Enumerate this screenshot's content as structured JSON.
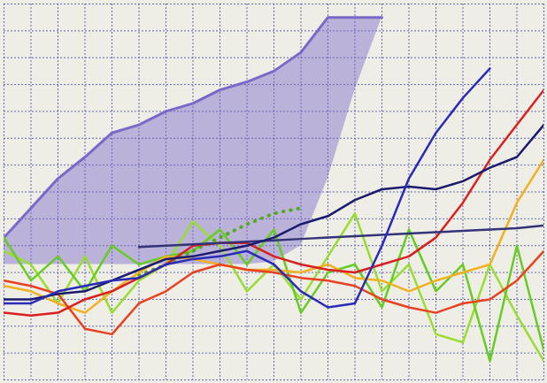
{
  "chart_data": {
    "type": "line",
    "x": [
      0,
      1,
      2,
      3,
      4,
      5,
      6,
      7,
      8,
      9,
      10,
      11,
      12,
      13,
      14,
      15,
      16,
      17,
      18,
      19,
      20
    ],
    "xlim": [
      0,
      20
    ],
    "ylim": [
      0,
      14
    ],
    "xticks": [
      0,
      1,
      2,
      3,
      4,
      5,
      6,
      7,
      8,
      9,
      10,
      11,
      12,
      13,
      14,
      15,
      16,
      17,
      18,
      19,
      20
    ],
    "yticks": [
      0,
      1,
      2,
      3,
      4,
      5,
      6,
      7,
      8,
      9,
      10,
      11,
      12,
      13,
      14
    ],
    "grid": true,
    "tick_labels": false,
    "series": [
      {
        "type": "area",
        "color": "#7b68c8",
        "values": [
          5.3,
          6.4,
          7.5,
          8.3,
          9.2,
          9.5,
          10.0,
          10.3,
          10.8,
          11.1,
          11.5,
          12.2,
          13.5,
          13.5,
          13.5,
          null,
          null,
          null,
          null,
          null,
          null
        ],
        "base": [
          4.3,
          4.3,
          4.3,
          4.3,
          4.3,
          4.3,
          4.3,
          4.3,
          4.3,
          4.3,
          4.4,
          5.0,
          7.5,
          10.8,
          13.5,
          null,
          null,
          null,
          null,
          null,
          null
        ]
      },
      {
        "color": "#99dd33",
        "values": [
          4.8,
          4.3,
          2.85,
          4.6,
          2.5,
          3.7,
          4.3,
          5.9,
          5.0,
          3.3,
          4.3,
          3.0,
          4.6,
          6.2,
          3.3,
          4.3,
          1.7,
          1.4,
          4.3,
          2.4,
          0.7
        ]
      },
      {
        "color": "#66cc22",
        "values": [
          5.3,
          3.7,
          4.6,
          3.3,
          5.0,
          4.3,
          4.6,
          4.8,
          5.6,
          4.3,
          5.6,
          2.5,
          4.0,
          4.3,
          2.7,
          5.6,
          3.3,
          4.3,
          0.7,
          5.0,
          1.1
        ]
      },
      {
        "color": "#55aa22",
        "line_style": "dotted",
        "values": [
          null,
          null,
          null,
          null,
          null,
          3.9,
          4.3,
          4.8,
          5.3,
          5.8,
          6.2,
          6.4,
          null,
          null,
          null,
          null,
          null,
          null,
          null,
          null,
          null
        ]
      },
      {
        "color": "#f0b020",
        "values": [
          3.5,
          3.3,
          2.85,
          2.5,
          3.3,
          4.0,
          4.6,
          4.5,
          4.3,
          4.1,
          4.1,
          4.0,
          4.3,
          3.8,
          3.7,
          3.3,
          3.7,
          4.0,
          4.3,
          6.6,
          8.2
        ]
      },
      {
        "color": "#e84020",
        "values": [
          3.7,
          3.5,
          3.2,
          1.9,
          1.7,
          2.85,
          3.3,
          4.0,
          4.3,
          4.1,
          4.0,
          3.8,
          3.7,
          3.5,
          3.0,
          2.7,
          2.5,
          2.85,
          3.0,
          3.7,
          4.8
        ]
      },
      {
        "color": "#d82020",
        "values": [
          2.5,
          2.4,
          2.5,
          3.0,
          3.3,
          3.8,
          4.3,
          5.0,
          5.1,
          5.1,
          4.6,
          4.3,
          4.1,
          4.0,
          4.3,
          4.6,
          5.3,
          6.6,
          8.2,
          9.5,
          10.8
        ]
      },
      {
        "color": "#33337a",
        "values": [
          null,
          null,
          null,
          null,
          null,
          4.95,
          5.0,
          5.05,
          5.1,
          5.15,
          5.2,
          5.25,
          5.3,
          5.35,
          5.4,
          5.45,
          5.5,
          5.55,
          5.6,
          5.65,
          5.75
        ]
      },
      {
        "color": "#1a1a6e",
        "values": [
          3.0,
          3.0,
          3.2,
          3.3,
          3.7,
          4.1,
          4.5,
          4.6,
          4.8,
          5.0,
          5.3,
          5.8,
          6.1,
          6.7,
          7.1,
          7.2,
          7.1,
          7.4,
          7.9,
          8.3,
          9.5
        ]
      },
      {
        "color": "#2a2ab8",
        "values": [
          2.85,
          2.85,
          3.3,
          3.5,
          3.7,
          3.8,
          4.3,
          4.5,
          4.6,
          4.8,
          4.3,
          3.3,
          2.7,
          2.85,
          5.0,
          7.5,
          9.2,
          10.5,
          11.6,
          null,
          null
        ]
      }
    ]
  }
}
